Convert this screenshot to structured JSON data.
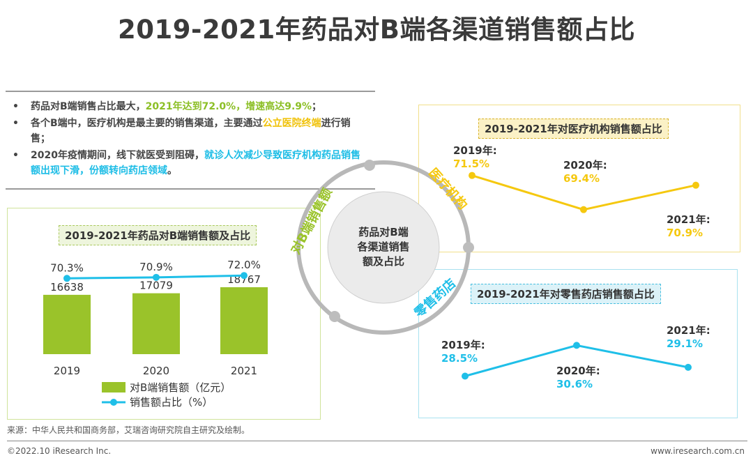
{
  "title": "2019-2021年药品对B端各渠道销售额占比",
  "bullets": [
    {
      "marker": "•",
      "parts": [
        {
          "text": "药品对B端销售占比最大，",
          "color": "default"
        },
        {
          "text": "2021年达到72.0%，增速高达9.9%",
          "color": "green"
        },
        {
          "text": "；",
          "color": "default"
        }
      ]
    },
    {
      "marker": "•",
      "parts": [
        {
          "text": "各个B端中，医疗机构是最主要的销售渠道，主要通过",
          "color": "default"
        },
        {
          "text": "公立医院终端",
          "color": "yellow"
        },
        {
          "text": "进行销售；",
          "color": "default"
        }
      ]
    },
    {
      "marker": "•",
      "parts": [
        {
          "text": "2020年疫情期间，线下就医受到阻碍，",
          "color": "default"
        },
        {
          "text": "就诊人次减少导致医疗机构药品销售额出现下滑，份额转向药店领域",
          "color": "cyan"
        },
        {
          "text": "。",
          "color": "default"
        }
      ]
    }
  ],
  "center": {
    "label_lines": [
      "药品对B端",
      "各渠道销售",
      "额及占比"
    ],
    "arc_label_left": "对B端销售额",
    "arc_label_top_right": "医疗机构",
    "arc_label_bottom_right": "零售药店"
  },
  "colors": {
    "green": "#9ac32a",
    "yellow": "#f5c80f",
    "cyan": "#1fbfe8",
    "text": "#333333"
  },
  "chart_data": [
    {
      "type": "bar",
      "title": "2019-2021年药品对B端销售额及占比",
      "categories": [
        "2019",
        "2020",
        "2021"
      ],
      "series": [
        {
          "name": "对B端销售额（亿元）",
          "kind": "bar",
          "values": [
            16638,
            17079,
            18767
          ],
          "labels": [
            "16638",
            "17079",
            "18767"
          ]
        },
        {
          "name": "销售额占比（%）",
          "kind": "line",
          "values": [
            70.3,
            70.9,
            72.0
          ],
          "labels": [
            "70.3%",
            "70.9%",
            "72.0%"
          ]
        }
      ],
      "legend": "bottom"
    },
    {
      "type": "line",
      "title": "2019-2021年对医疗机构销售额占比",
      "categories": [
        "2019年:",
        "2020年:",
        "2021年:"
      ],
      "values": [
        71.5,
        69.4,
        70.9
      ],
      "labels": [
        "71.5%",
        "69.4%",
        "70.9%"
      ]
    },
    {
      "type": "line",
      "title": "2019-2021年对零售药店销售额占比",
      "categories": [
        "2019年:",
        "2020年:",
        "2021年:"
      ],
      "values": [
        28.5,
        30.6,
        29.1
      ],
      "labels": [
        "28.5%",
        "30.6%",
        "29.1%"
      ]
    }
  ],
  "source": "来源：中华人民共和国商务部，艾瑞咨询研究院自主研究及绘制。",
  "copyright": "©2022.10 iResearch Inc.",
  "website": "www.iresearch.com.cn"
}
